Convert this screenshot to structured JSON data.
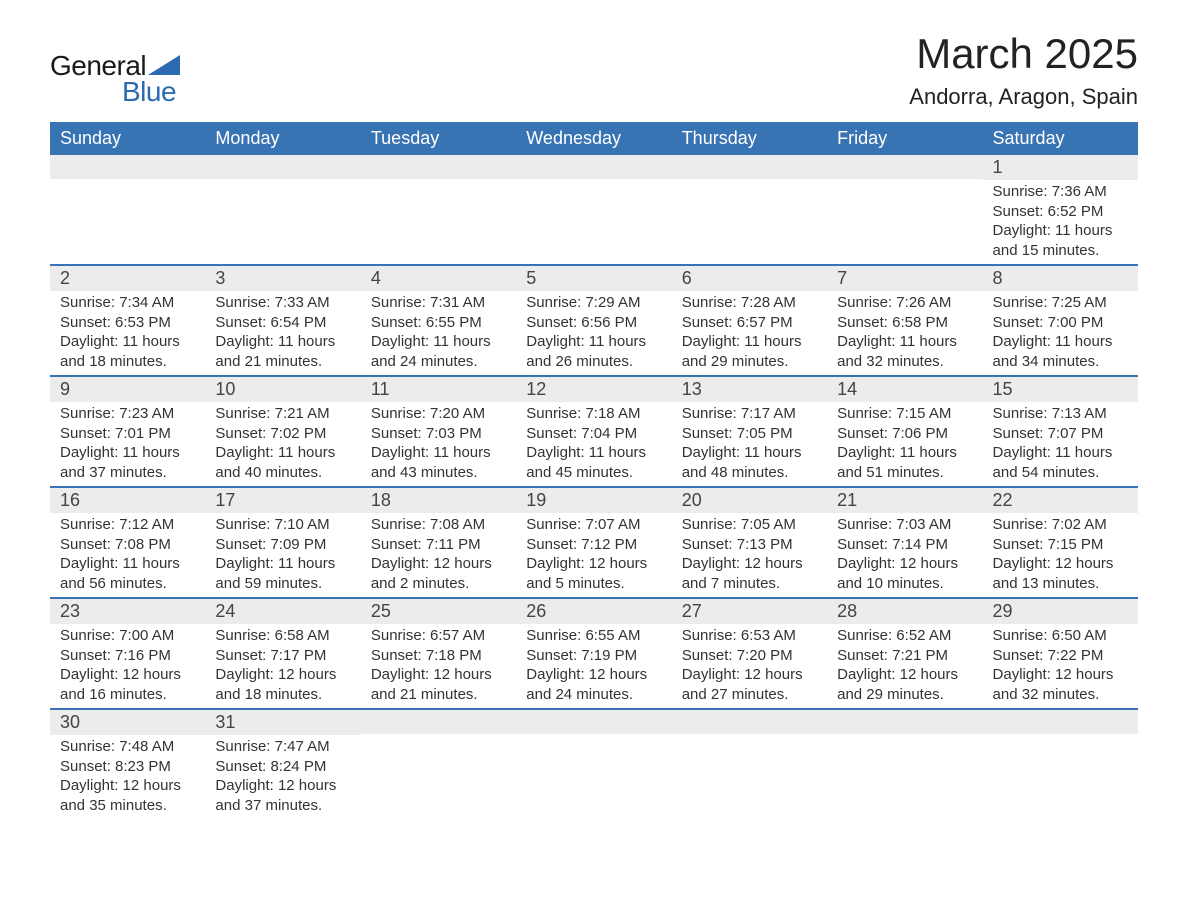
{
  "brand": {
    "text_general": "General",
    "text_blue": "Blue",
    "triangle_color": "#2d6bb0"
  },
  "title": {
    "month": "March 2025",
    "location": "Andorra, Aragon, Spain"
  },
  "styling": {
    "header_bg": "#3873b4",
    "header_text": "#ffffff",
    "daybar_bg": "#ececec",
    "row_divider": "#3873b4",
    "body_text": "#333333",
    "font_family": "Arial, Helvetica, sans-serif",
    "month_title_fontsize": 42,
    "location_fontsize": 22,
    "header_cell_fontsize": 18,
    "day_number_fontsize": 18,
    "body_fontsize": 15
  },
  "weekdays": [
    "Sunday",
    "Monday",
    "Tuesday",
    "Wednesday",
    "Thursday",
    "Friday",
    "Saturday"
  ],
  "weeks": [
    [
      {
        "day": "",
        "sunrise": "",
        "sunset": "",
        "daylight1": "",
        "daylight2": ""
      },
      {
        "day": "",
        "sunrise": "",
        "sunset": "",
        "daylight1": "",
        "daylight2": ""
      },
      {
        "day": "",
        "sunrise": "",
        "sunset": "",
        "daylight1": "",
        "daylight2": ""
      },
      {
        "day": "",
        "sunrise": "",
        "sunset": "",
        "daylight1": "",
        "daylight2": ""
      },
      {
        "day": "",
        "sunrise": "",
        "sunset": "",
        "daylight1": "",
        "daylight2": ""
      },
      {
        "day": "",
        "sunrise": "",
        "sunset": "",
        "daylight1": "",
        "daylight2": ""
      },
      {
        "day": "1",
        "sunrise": "Sunrise: 7:36 AM",
        "sunset": "Sunset: 6:52 PM",
        "daylight1": "Daylight: 11 hours",
        "daylight2": "and 15 minutes."
      }
    ],
    [
      {
        "day": "2",
        "sunrise": "Sunrise: 7:34 AM",
        "sunset": "Sunset: 6:53 PM",
        "daylight1": "Daylight: 11 hours",
        "daylight2": "and 18 minutes."
      },
      {
        "day": "3",
        "sunrise": "Sunrise: 7:33 AM",
        "sunset": "Sunset: 6:54 PM",
        "daylight1": "Daylight: 11 hours",
        "daylight2": "and 21 minutes."
      },
      {
        "day": "4",
        "sunrise": "Sunrise: 7:31 AM",
        "sunset": "Sunset: 6:55 PM",
        "daylight1": "Daylight: 11 hours",
        "daylight2": "and 24 minutes."
      },
      {
        "day": "5",
        "sunrise": "Sunrise: 7:29 AM",
        "sunset": "Sunset: 6:56 PM",
        "daylight1": "Daylight: 11 hours",
        "daylight2": "and 26 minutes."
      },
      {
        "day": "6",
        "sunrise": "Sunrise: 7:28 AM",
        "sunset": "Sunset: 6:57 PM",
        "daylight1": "Daylight: 11 hours",
        "daylight2": "and 29 minutes."
      },
      {
        "day": "7",
        "sunrise": "Sunrise: 7:26 AM",
        "sunset": "Sunset: 6:58 PM",
        "daylight1": "Daylight: 11 hours",
        "daylight2": "and 32 minutes."
      },
      {
        "day": "8",
        "sunrise": "Sunrise: 7:25 AM",
        "sunset": "Sunset: 7:00 PM",
        "daylight1": "Daylight: 11 hours",
        "daylight2": "and 34 minutes."
      }
    ],
    [
      {
        "day": "9",
        "sunrise": "Sunrise: 7:23 AM",
        "sunset": "Sunset: 7:01 PM",
        "daylight1": "Daylight: 11 hours",
        "daylight2": "and 37 minutes."
      },
      {
        "day": "10",
        "sunrise": "Sunrise: 7:21 AM",
        "sunset": "Sunset: 7:02 PM",
        "daylight1": "Daylight: 11 hours",
        "daylight2": "and 40 minutes."
      },
      {
        "day": "11",
        "sunrise": "Sunrise: 7:20 AM",
        "sunset": "Sunset: 7:03 PM",
        "daylight1": "Daylight: 11 hours",
        "daylight2": "and 43 minutes."
      },
      {
        "day": "12",
        "sunrise": "Sunrise: 7:18 AM",
        "sunset": "Sunset: 7:04 PM",
        "daylight1": "Daylight: 11 hours",
        "daylight2": "and 45 minutes."
      },
      {
        "day": "13",
        "sunrise": "Sunrise: 7:17 AM",
        "sunset": "Sunset: 7:05 PM",
        "daylight1": "Daylight: 11 hours",
        "daylight2": "and 48 minutes."
      },
      {
        "day": "14",
        "sunrise": "Sunrise: 7:15 AM",
        "sunset": "Sunset: 7:06 PM",
        "daylight1": "Daylight: 11 hours",
        "daylight2": "and 51 minutes."
      },
      {
        "day": "15",
        "sunrise": "Sunrise: 7:13 AM",
        "sunset": "Sunset: 7:07 PM",
        "daylight1": "Daylight: 11 hours",
        "daylight2": "and 54 minutes."
      }
    ],
    [
      {
        "day": "16",
        "sunrise": "Sunrise: 7:12 AM",
        "sunset": "Sunset: 7:08 PM",
        "daylight1": "Daylight: 11 hours",
        "daylight2": "and 56 minutes."
      },
      {
        "day": "17",
        "sunrise": "Sunrise: 7:10 AM",
        "sunset": "Sunset: 7:09 PM",
        "daylight1": "Daylight: 11 hours",
        "daylight2": "and 59 minutes."
      },
      {
        "day": "18",
        "sunrise": "Sunrise: 7:08 AM",
        "sunset": "Sunset: 7:11 PM",
        "daylight1": "Daylight: 12 hours",
        "daylight2": "and 2 minutes."
      },
      {
        "day": "19",
        "sunrise": "Sunrise: 7:07 AM",
        "sunset": "Sunset: 7:12 PM",
        "daylight1": "Daylight: 12 hours",
        "daylight2": "and 5 minutes."
      },
      {
        "day": "20",
        "sunrise": "Sunrise: 7:05 AM",
        "sunset": "Sunset: 7:13 PM",
        "daylight1": "Daylight: 12 hours",
        "daylight2": "and 7 minutes."
      },
      {
        "day": "21",
        "sunrise": "Sunrise: 7:03 AM",
        "sunset": "Sunset: 7:14 PM",
        "daylight1": "Daylight: 12 hours",
        "daylight2": "and 10 minutes."
      },
      {
        "day": "22",
        "sunrise": "Sunrise: 7:02 AM",
        "sunset": "Sunset: 7:15 PM",
        "daylight1": "Daylight: 12 hours",
        "daylight2": "and 13 minutes."
      }
    ],
    [
      {
        "day": "23",
        "sunrise": "Sunrise: 7:00 AM",
        "sunset": "Sunset: 7:16 PM",
        "daylight1": "Daylight: 12 hours",
        "daylight2": "and 16 minutes."
      },
      {
        "day": "24",
        "sunrise": "Sunrise: 6:58 AM",
        "sunset": "Sunset: 7:17 PM",
        "daylight1": "Daylight: 12 hours",
        "daylight2": "and 18 minutes."
      },
      {
        "day": "25",
        "sunrise": "Sunrise: 6:57 AM",
        "sunset": "Sunset: 7:18 PM",
        "daylight1": "Daylight: 12 hours",
        "daylight2": "and 21 minutes."
      },
      {
        "day": "26",
        "sunrise": "Sunrise: 6:55 AM",
        "sunset": "Sunset: 7:19 PM",
        "daylight1": "Daylight: 12 hours",
        "daylight2": "and 24 minutes."
      },
      {
        "day": "27",
        "sunrise": "Sunrise: 6:53 AM",
        "sunset": "Sunset: 7:20 PM",
        "daylight1": "Daylight: 12 hours",
        "daylight2": "and 27 minutes."
      },
      {
        "day": "28",
        "sunrise": "Sunrise: 6:52 AM",
        "sunset": "Sunset: 7:21 PM",
        "daylight1": "Daylight: 12 hours",
        "daylight2": "and 29 minutes."
      },
      {
        "day": "29",
        "sunrise": "Sunrise: 6:50 AM",
        "sunset": "Sunset: 7:22 PM",
        "daylight1": "Daylight: 12 hours",
        "daylight2": "and 32 minutes."
      }
    ],
    [
      {
        "day": "30",
        "sunrise": "Sunrise: 7:48 AM",
        "sunset": "Sunset: 8:23 PM",
        "daylight1": "Daylight: 12 hours",
        "daylight2": "and 35 minutes."
      },
      {
        "day": "31",
        "sunrise": "Sunrise: 7:47 AM",
        "sunset": "Sunset: 8:24 PM",
        "daylight1": "Daylight: 12 hours",
        "daylight2": "and 37 minutes."
      },
      {
        "day": "",
        "sunrise": "",
        "sunset": "",
        "daylight1": "",
        "daylight2": ""
      },
      {
        "day": "",
        "sunrise": "",
        "sunset": "",
        "daylight1": "",
        "daylight2": ""
      },
      {
        "day": "",
        "sunrise": "",
        "sunset": "",
        "daylight1": "",
        "daylight2": ""
      },
      {
        "day": "",
        "sunrise": "",
        "sunset": "",
        "daylight1": "",
        "daylight2": ""
      },
      {
        "day": "",
        "sunrise": "",
        "sunset": "",
        "daylight1": "",
        "daylight2": ""
      }
    ]
  ]
}
